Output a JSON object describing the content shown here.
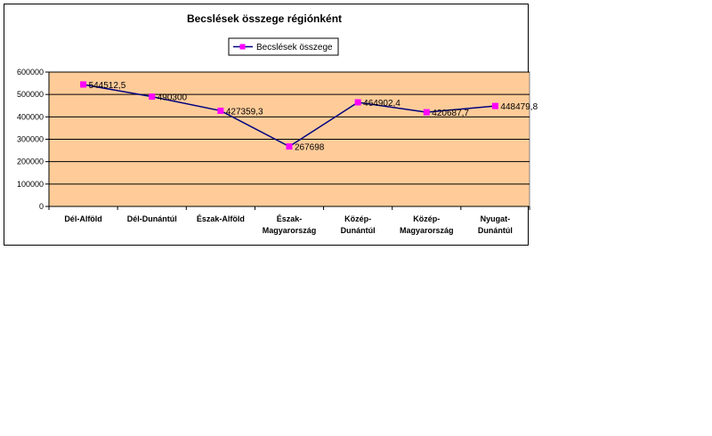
{
  "chart_data": {
    "type": "line",
    "title": "Becslések összege régiónként",
    "categories": [
      [
        "Dél-Alföld"
      ],
      [
        "Dél-Dunántúl"
      ],
      [
        "Észak-Alföld"
      ],
      [
        "Észak-",
        "Magyarország"
      ],
      [
        "Közép-",
        "Dunántúl"
      ],
      [
        "Közép-",
        "Magyarország"
      ],
      [
        "Nyugat-",
        "Dunántúl"
      ]
    ],
    "series": [
      {
        "name": "Becslések összege",
        "values": [
          544512.5,
          490300,
          427359.3,
          267698,
          464902.4,
          420687.7,
          448479.8
        ],
        "labels": [
          "544512,5",
          "490300",
          "427359,3",
          "267698",
          "464902,4",
          "420687,7",
          "448479,8"
        ],
        "line_color": "#000080",
        "marker_color": "#ff00ff"
      }
    ],
    "y_ticks": [
      "0",
      "100000",
      "200000",
      "300000",
      "400000",
      "500000",
      "600000"
    ],
    "ylim": [
      0,
      600000
    ],
    "grid": true,
    "plot_background": "#ffcc99",
    "legend_position": "top"
  }
}
